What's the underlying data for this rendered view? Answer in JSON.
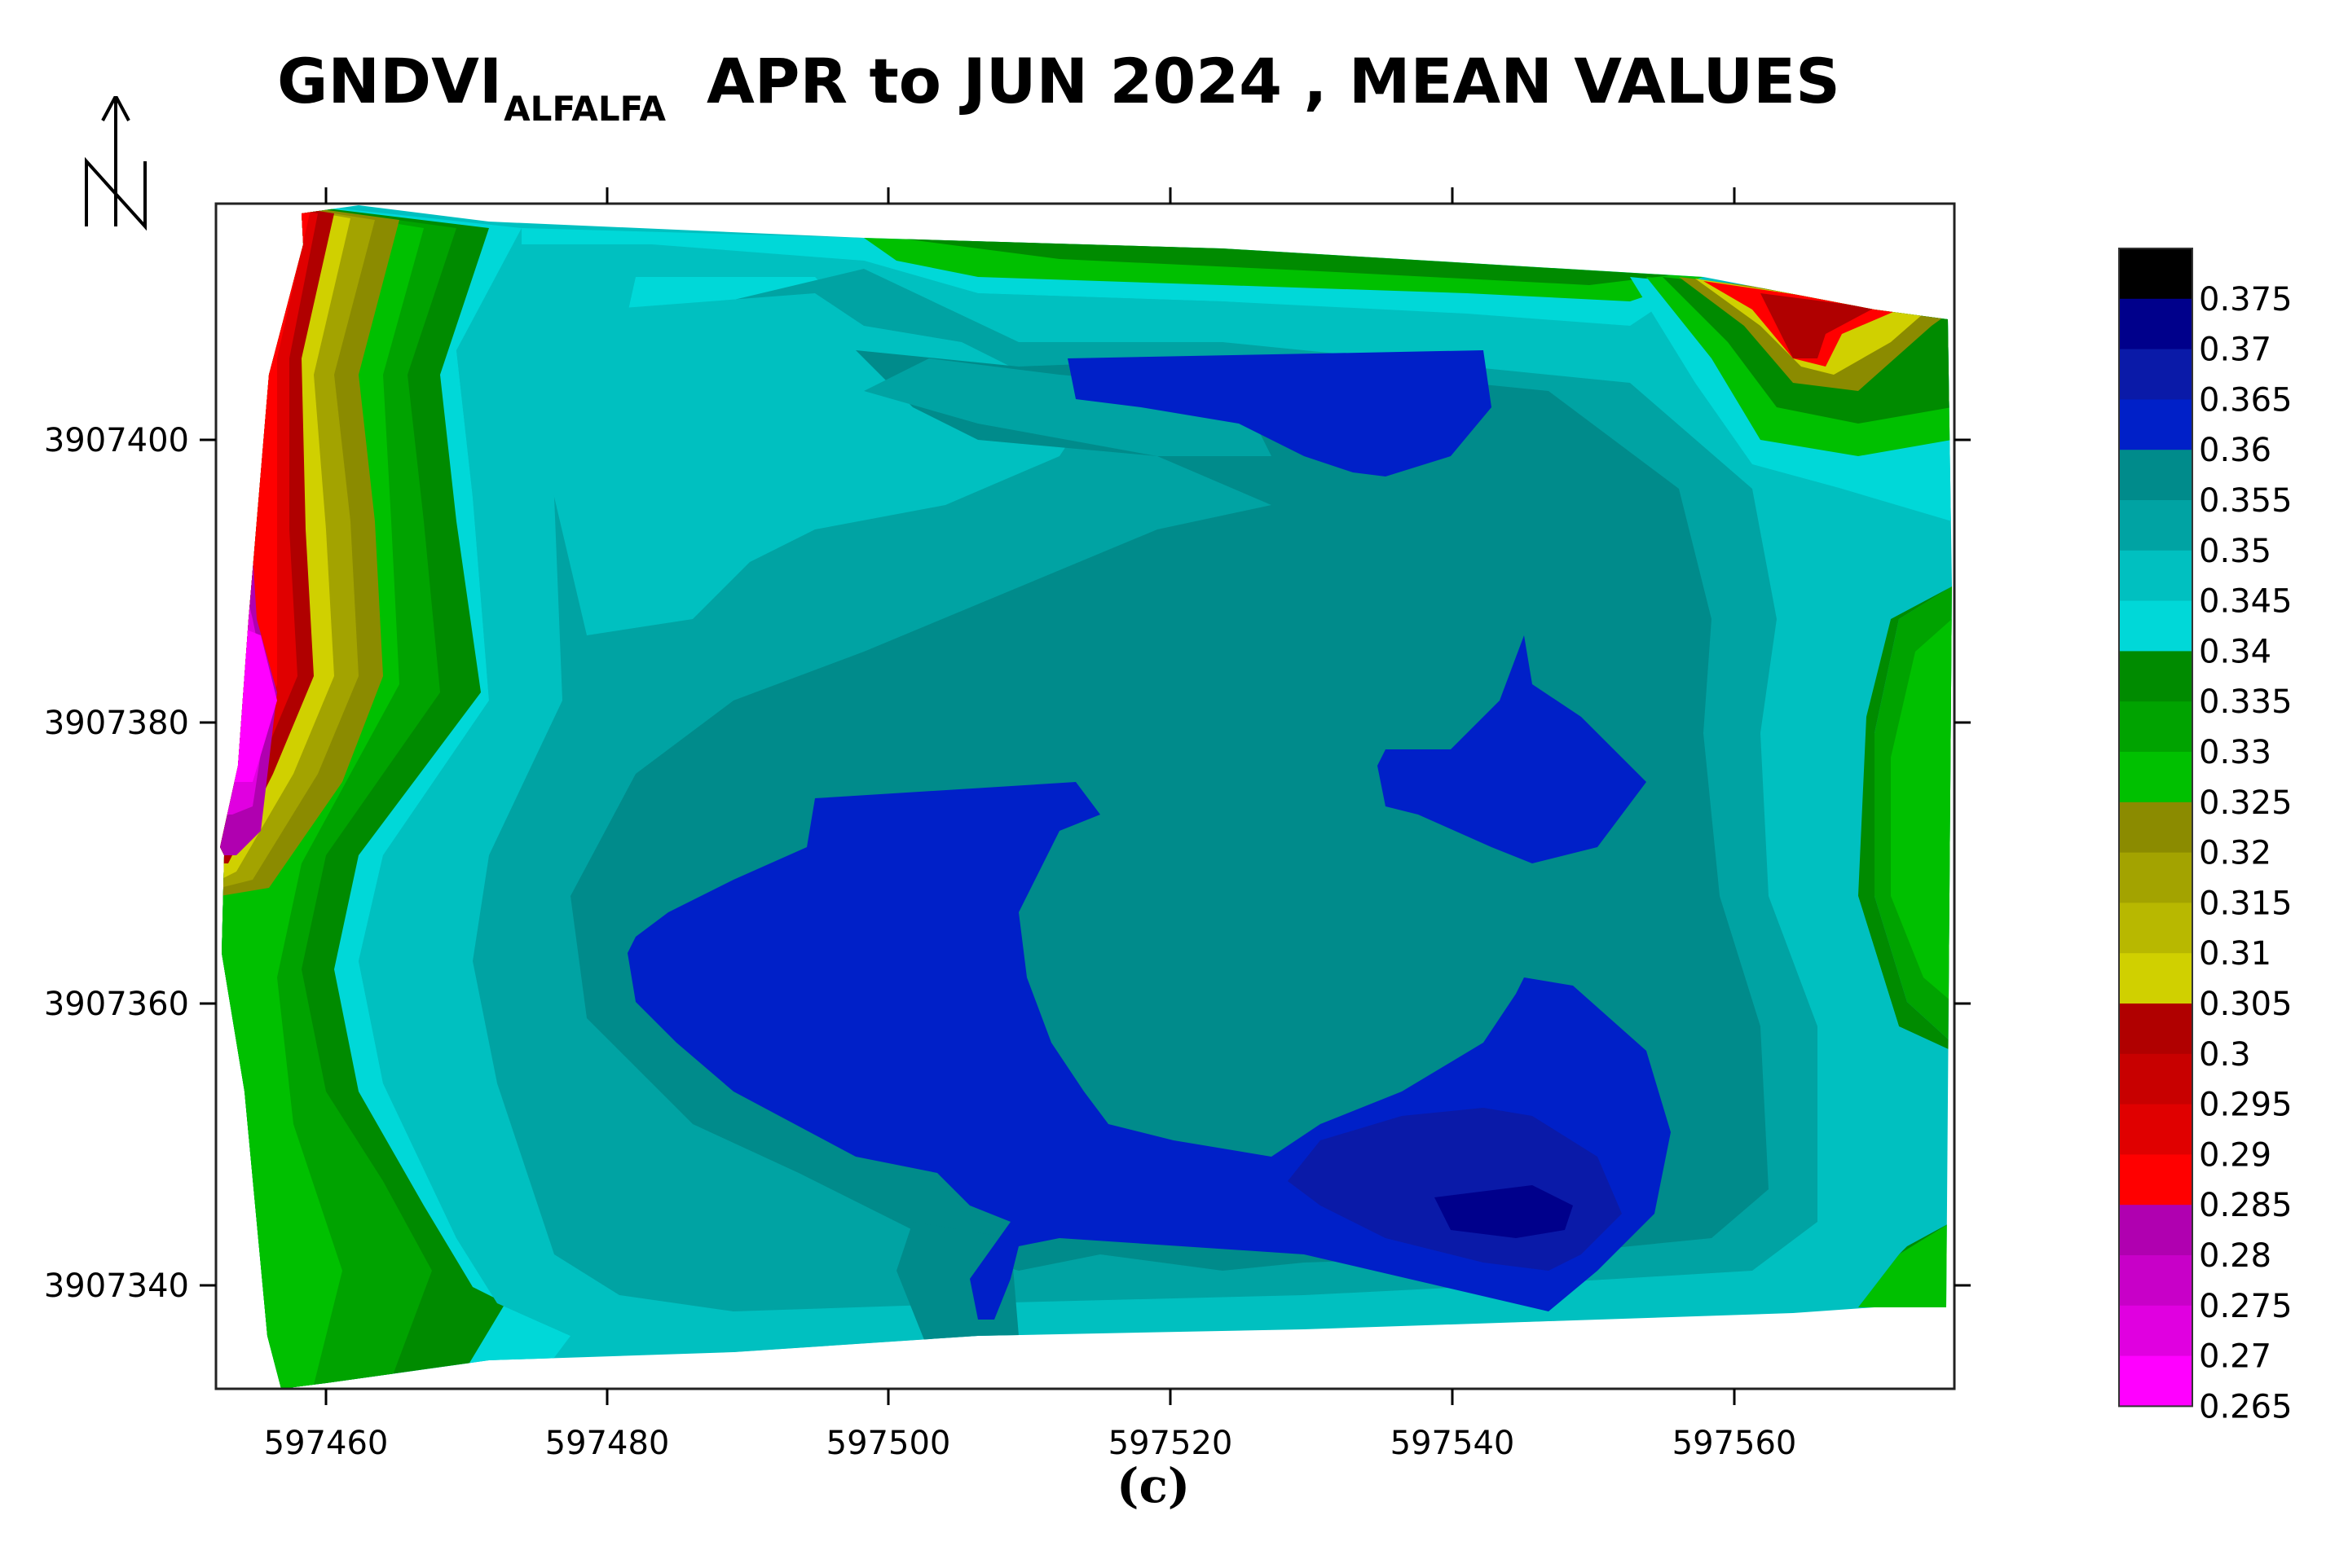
{
  "title": {
    "main": "GNDVI",
    "subscript": "ALFALFA",
    "rest": "APR to JUN 2024 , MEAN VALUES"
  },
  "north_arrow": {
    "label": "N",
    "icon": "north-arrow-icon"
  },
  "map": {
    "x_ticks": [
      "597460",
      "597480",
      "597500",
      "597520",
      "597540",
      "597560"
    ],
    "y_ticks": [
      "3907400",
      "3907380",
      "3907360",
      "3907340"
    ]
  },
  "legend": {
    "levels": [
      {
        "label": "0.375",
        "color": "#000000"
      },
      {
        "label": "0.37",
        "color": "#00008b"
      },
      {
        "label": "0.365",
        "color": "#0a1aa8"
      },
      {
        "label": "0.36",
        "color": "#0020c8"
      },
      {
        "label": "0.355",
        "color": "#008b8b"
      },
      {
        "label": "0.35",
        "color": "#00a3a3"
      },
      {
        "label": "0.345",
        "color": "#00c0c0"
      },
      {
        "label": "0.34",
        "color": "#00d8d8"
      },
      {
        "label": "0.335",
        "color": "#008b00"
      },
      {
        "label": "0.33",
        "color": "#00a300"
      },
      {
        "label": "0.325",
        "color": "#00c000"
      },
      {
        "label": "0.32",
        "color": "#8b8b00"
      },
      {
        "label": "0.315",
        "color": "#a3a300"
      },
      {
        "label": "0.31",
        "color": "#b8b800"
      },
      {
        "label": "0.305",
        "color": "#d0d000"
      },
      {
        "label": "0.3",
        "color": "#b00000"
      },
      {
        "label": "0.295",
        "color": "#c80000"
      },
      {
        "label": "0.29",
        "color": "#e00000"
      },
      {
        "label": "0.285",
        "color": "#ff0000"
      },
      {
        "label": "0.28",
        "color": "#b000b0"
      },
      {
        "label": "0.275",
        "color": "#c800c8"
      },
      {
        "label": "0.27",
        "color": "#e000e0"
      },
      {
        "label": "0.265",
        "color": "#ff00ff"
      }
    ]
  },
  "caption": "(c)"
}
